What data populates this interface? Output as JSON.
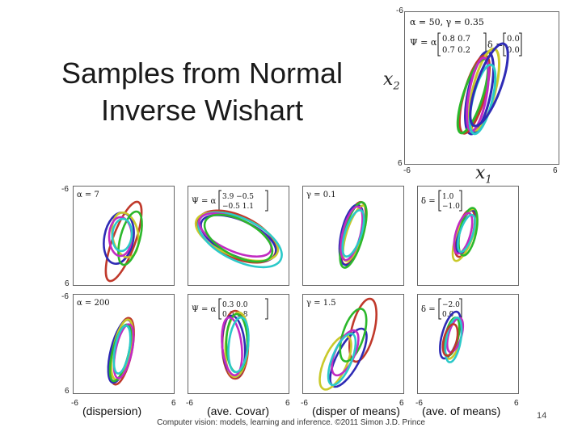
{
  "title_line1": "Samples from Normal",
  "title_line2": "Inverse Wishart",
  "main_plot": {
    "alpha_gamma": "α = 50, γ = 0.35",
    "psi_prefix": "Ψ = α",
    "psi_row1": "0.8   0.7",
    "psi_row2": "0.7   0.2",
    "delta_prefix": "δ =",
    "delta_row1": "0.0",
    "delta_row2": "0.0",
    "ylabel": "x",
    "ylabel_sub": "2",
    "xlabel": "x",
    "xlabel_sub": "1",
    "tick_top": "-6",
    "tick_left_bottom": "6",
    "tick_bottom_left": "-6",
    "tick_bottom_right": "6"
  },
  "panels": [
    {
      "label": "α = 7"
    },
    {
      "label_prefix": "Ψ = α",
      "row1": "3.9   −0.5",
      "row2": "−0.5   1.1"
    },
    {
      "label": "γ = 0.1"
    },
    {
      "label_prefix": "δ =",
      "row1": "1.0",
      "row2": "−1.0"
    },
    {
      "label": "α = 200"
    },
    {
      "label_prefix": "Ψ = α",
      "row1": "0.3   0.0",
      "row2": "0.0   1.8"
    },
    {
      "label": "γ = 1.5"
    },
    {
      "label_prefix": "δ =",
      "row1": "−2.0",
      "row2": "0.0"
    }
  ],
  "grid_ticks": {
    "row1_top": "-6",
    "row1_bottom": "6",
    "row2_top": "-6",
    "row2_bottom": "6",
    "x_minus": "-6",
    "x_plus": "6"
  },
  "column_labels": [
    "(dispersion)",
    "(ave. Covar)",
    "(disper of means)",
    "(ave. of means)"
  ],
  "footer": "Computer vision: models, learning and inference.  ©2011 Simon J.D. Prince",
  "page_number": "14",
  "colors": [
    "#c0392b",
    "#2e2bb5",
    "#c9c92a",
    "#2bb82b",
    "#c22bc2",
    "#2bc9c9"
  ]
}
